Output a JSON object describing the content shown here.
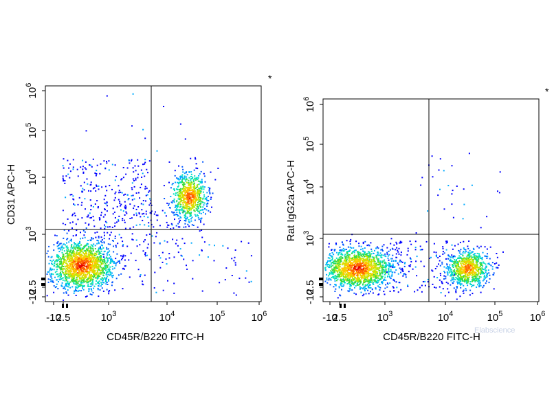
{
  "chart_data": [
    {
      "type": "scatter",
      "xlabel": "CD45R/B220 FITC-H",
      "ylabel": "CD31 APC-H",
      "x_ticks": [
        "-10",
        "2.5",
        "3",
        "4",
        "5",
        "6"
      ],
      "y_ticks": [
        "-10",
        "2.5",
        "3",
        "4",
        "5",
        "6"
      ],
      "gate": {
        "x": 4500,
        "y": 1100
      },
      "corner_mark": "*",
      "populations": [
        {
          "x_center": 150,
          "y_center": 30,
          "density": "high"
        },
        {
          "x_center": 25000,
          "y_center": 4500,
          "density": "high"
        },
        {
          "x_center": 300,
          "y_center": 5000,
          "density": "sparse"
        }
      ]
    },
    {
      "type": "scatter",
      "xlabel": "CD45R/B220 FITC-H",
      "ylabel": "Rat IgG2a APC-H",
      "x_ticks": [
        "-10",
        "2.5",
        "3",
        "4",
        "5",
        "6"
      ],
      "y_ticks": [
        "-10",
        "2.5",
        "3",
        "4",
        "5",
        "6"
      ],
      "gate": {
        "x": 4500,
        "y": 1100
      },
      "corner_mark": "*",
      "populations": [
        {
          "x_center": 150,
          "y_center": 30,
          "density": "high"
        },
        {
          "x_center": 25000,
          "y_center": 30,
          "density": "high"
        }
      ]
    }
  ],
  "watermark": "Elabscience"
}
